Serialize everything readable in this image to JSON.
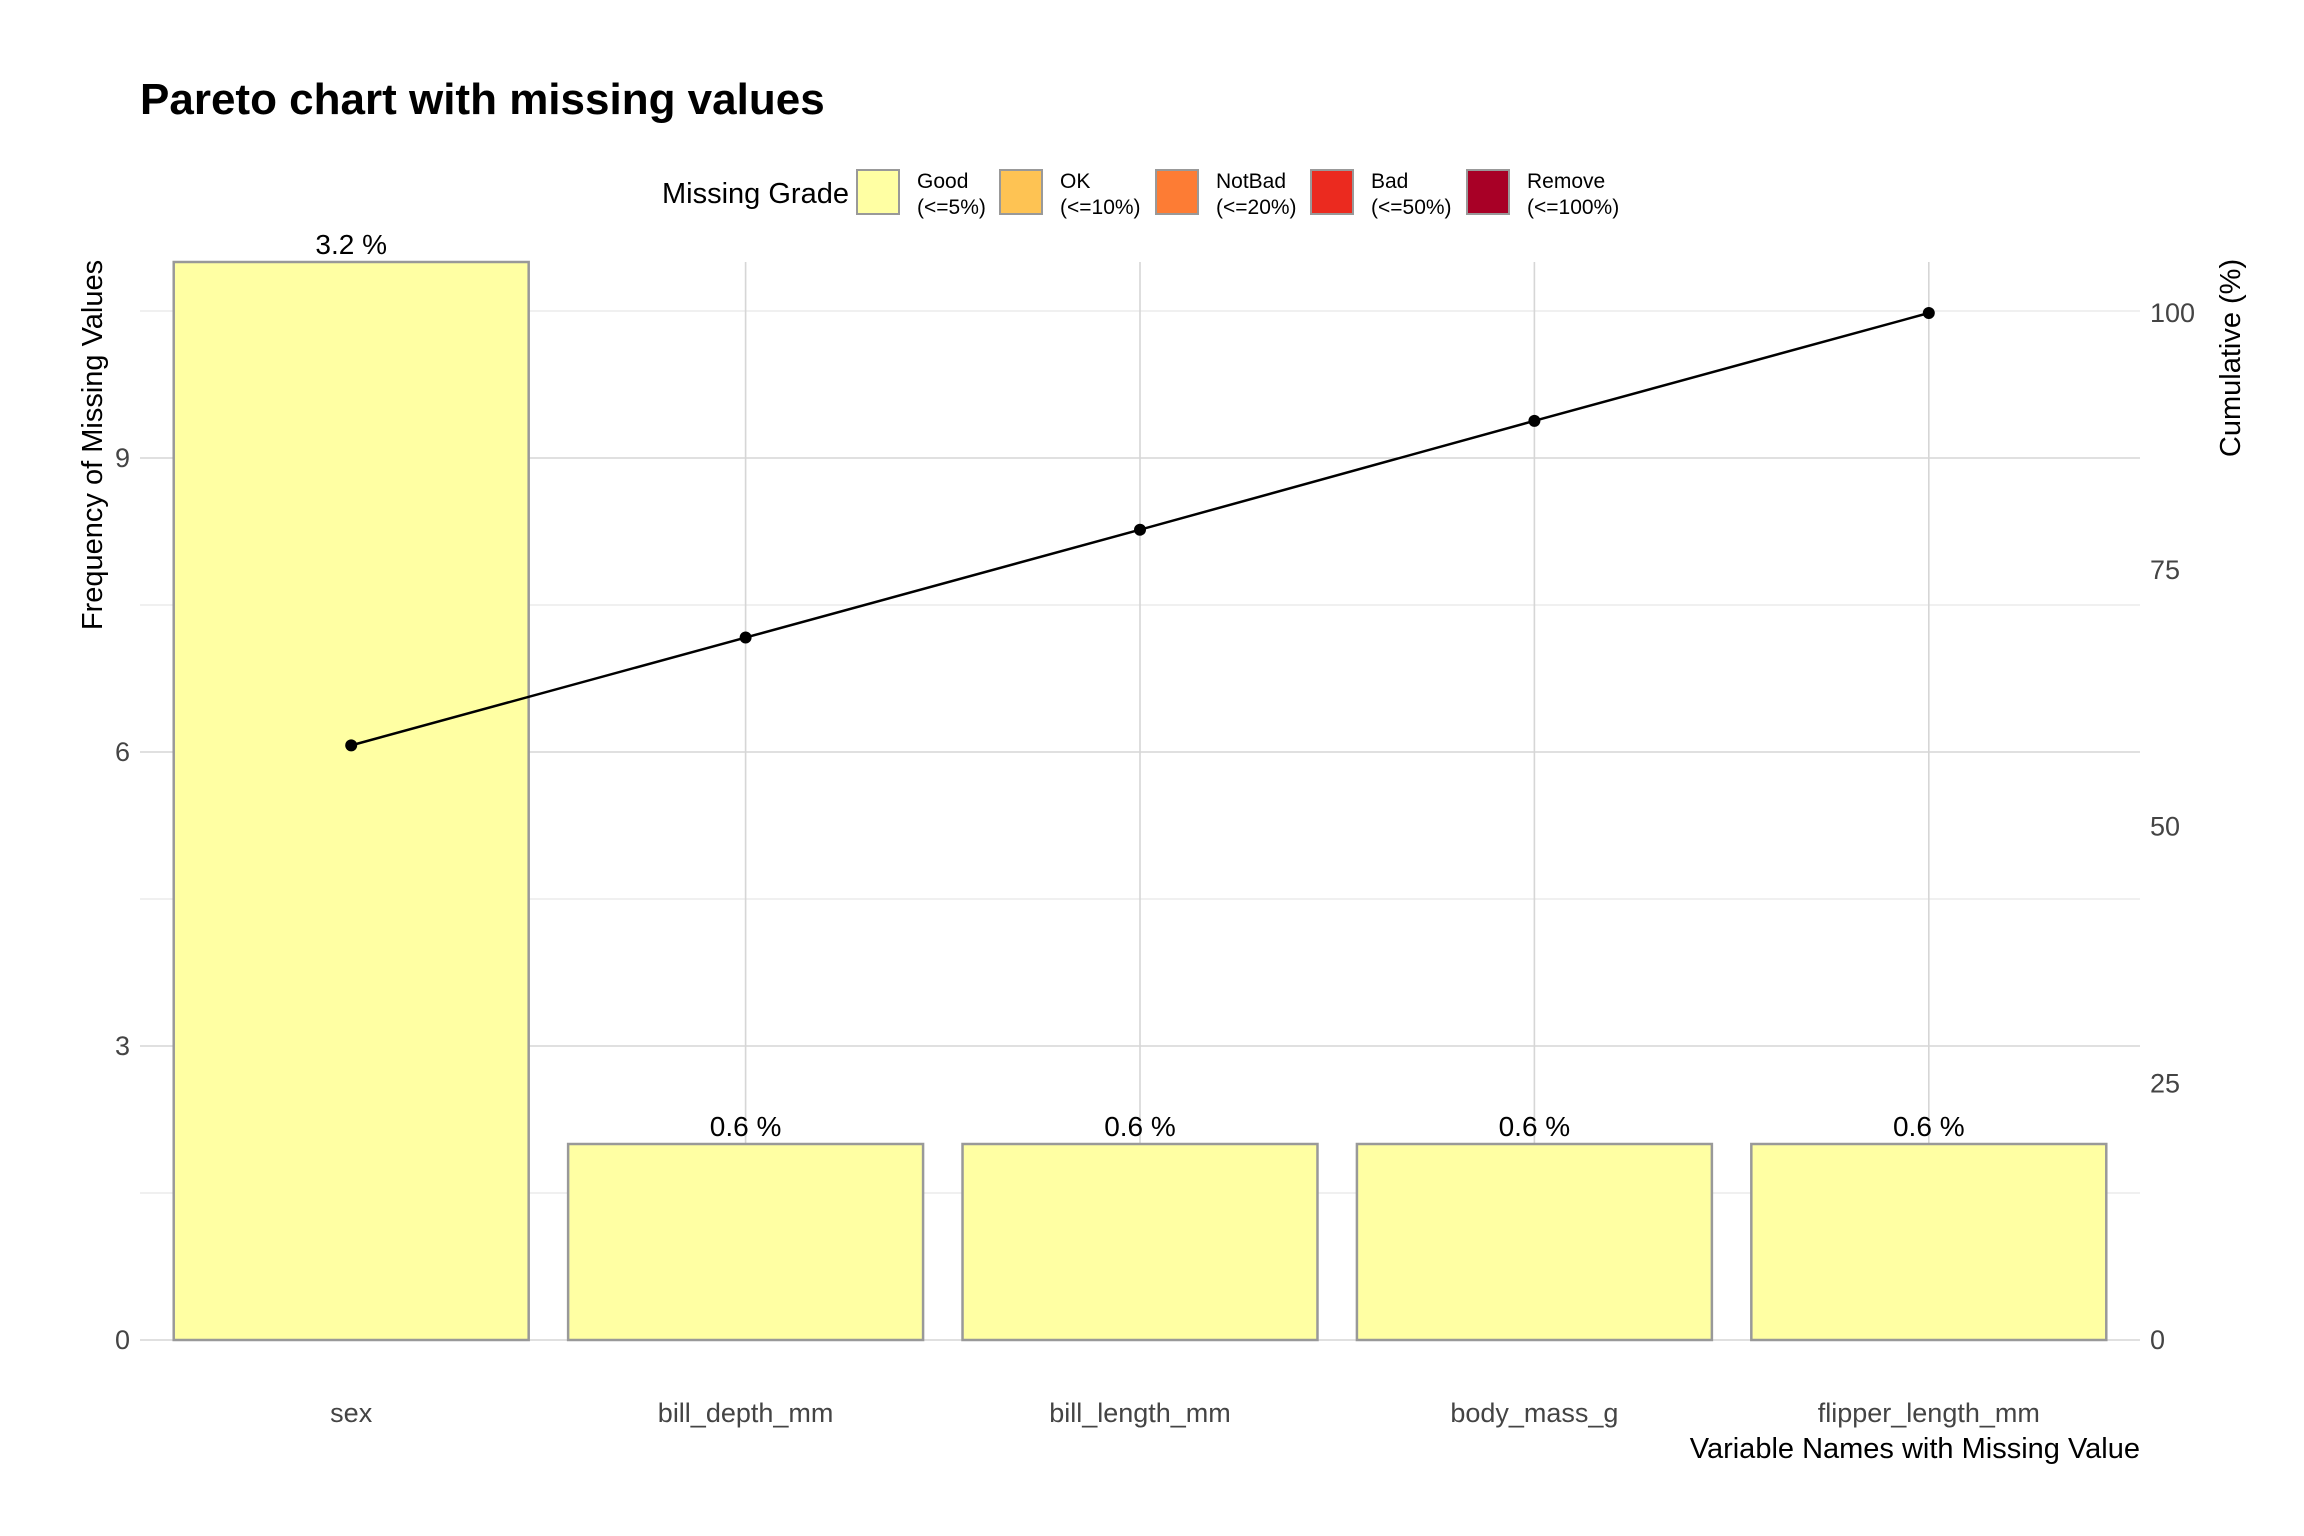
{
  "chart_data": {
    "type": "bar",
    "title": "Pareto chart with missing values",
    "xlabel": "Variable Names with Missing Value",
    "ylabel": "Frequency of Missing Values",
    "y2label": "Cumulative (%)",
    "categories": [
      "sex",
      "bill_depth_mm",
      "bill_length_mm",
      "body_mass_g",
      "flipper_length_mm"
    ],
    "values": [
      11,
      2,
      2,
      2,
      2
    ],
    "bar_labels": [
      "3.2 %",
      "0.6 %",
      "0.6 %",
      "0.6 %",
      "0.6 %"
    ],
    "bar_grades": [
      "Good",
      "Good",
      "Good",
      "Good",
      "Good"
    ],
    "cumulative": [
      57.9,
      68.4,
      78.9,
      89.5,
      100
    ],
    "ylim": [
      0,
      11
    ],
    "yticks": [
      0,
      3,
      6,
      9
    ],
    "y2lim": [
      0,
      100
    ],
    "y2ticks": [
      0,
      25,
      50,
      75,
      100
    ],
    "grid": true,
    "legend": {
      "placement": "top",
      "title": "Missing Grade",
      "items": [
        {
          "line1": "Good",
          "line2": "(<=5%)",
          "color": "#FFFFA3"
        },
        {
          "line1": "OK",
          "line2": "(<=10%)",
          "color": "#FEC353"
        },
        {
          "line1": "NotBad",
          "line2": "(<=20%)",
          "color": "#FD7C34"
        },
        {
          "line1": "Bad",
          "line2": "(<=50%)",
          "color": "#EB2A1F"
        },
        {
          "line1": "Remove",
          "line2": "(<=100%)",
          "color": "#A80026"
        }
      ]
    }
  }
}
